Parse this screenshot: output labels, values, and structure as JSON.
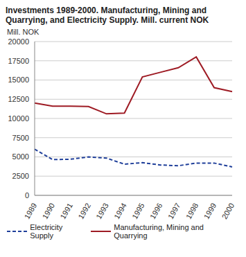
{
  "chart_data": {
    "type": "line",
    "title": "Investments 1989-2000. Manufacturing, Mining and Quarrying, and Electricity Supply. Mill. current NOK",
    "y_label": "Mill. NOK",
    "categories": [
      "1989",
      "1990",
      "1991",
      "1992",
      "1993",
      "1994",
      "1995",
      "1996",
      "1997",
      "1998",
      "1999",
      "2000"
    ],
    "series": [
      {
        "name": "Electricity Supply",
        "color": "#1f3f9a",
        "line_style": "dashed",
        "values": [
          6000,
          4650,
          4700,
          5000,
          4850,
          4050,
          4250,
          3950,
          3850,
          4200,
          4200,
          3700
        ]
      },
      {
        "name": "Manufacturing, Mining and Quarrying",
        "color": "#9e1b24",
        "line_style": "solid",
        "values": [
          12000,
          11600,
          11600,
          11550,
          10600,
          10700,
          15400,
          16000,
          16600,
          18000,
          14000,
          13500
        ]
      }
    ],
    "ylim": [
      0,
      20000
    ],
    "yticks": [
      0,
      2500,
      5000,
      7500,
      10000,
      12500,
      15000,
      17500,
      20000
    ],
    "grid": true,
    "legend": "bottom"
  }
}
